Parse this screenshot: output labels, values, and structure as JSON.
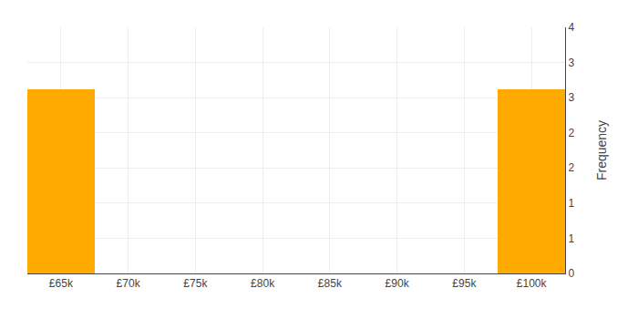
{
  "chart_data": {
    "type": "histogram",
    "bins": [
      62500,
      67500,
      72500,
      77500,
      82500,
      87500,
      92500,
      97500,
      102500
    ],
    "values": [
      3,
      0,
      0,
      0,
      0,
      0,
      0,
      3
    ],
    "color": "#FFAA00",
    "xlim": [
      62500,
      102500
    ],
    "xticks": [
      {
        "value": 65000,
        "label": "£65k"
      },
      {
        "value": 70000,
        "label": "£70k"
      },
      {
        "value": 75000,
        "label": "£75k"
      },
      {
        "value": 80000,
        "label": "£80k"
      },
      {
        "value": 85000,
        "label": "£85k"
      },
      {
        "value": 90000,
        "label": "£90k"
      },
      {
        "value": 95000,
        "label": "£95k"
      },
      {
        "value": 100000,
        "label": "£100k"
      }
    ],
    "ylim": [
      0,
      4
    ],
    "yticks": [
      0,
      {
        "value": 0.5714,
        "label": "1"
      },
      {
        "value": 1.1429,
        "label": "1"
      },
      {
        "value": 1.7143,
        "label": "2"
      },
      {
        "value": 2.2857,
        "label": "2"
      },
      {
        "value": 2.8571,
        "label": "3"
      },
      {
        "value": 3.4286,
        "label": "3"
      },
      4.0
    ],
    "ylabel": "Frequency",
    "grid": true
  }
}
